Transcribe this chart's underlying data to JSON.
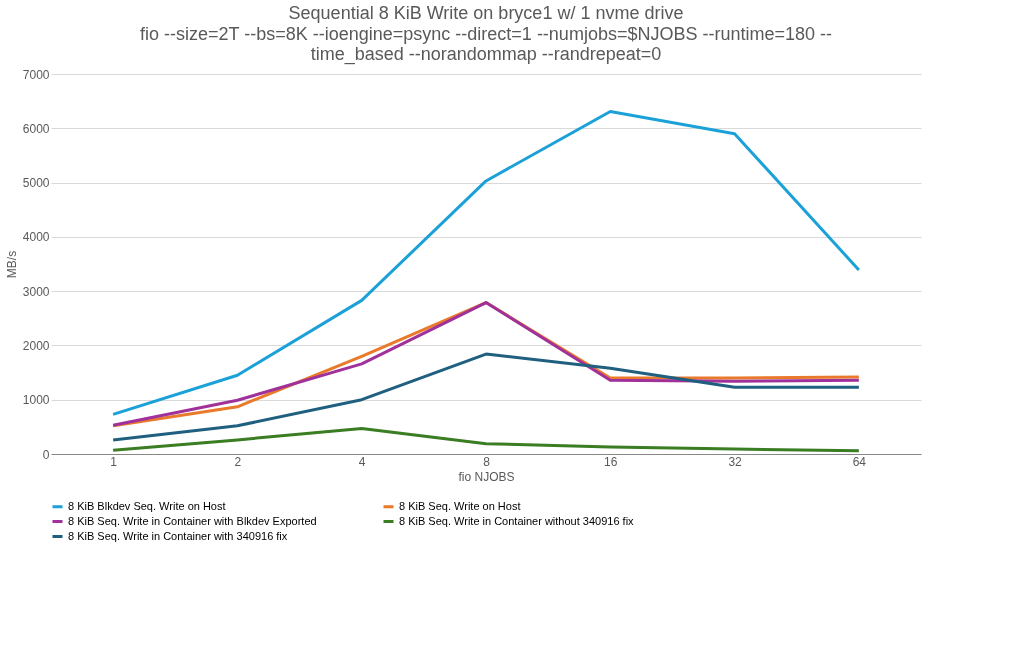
{
  "chart_data": {
    "type": "line",
    "title": "Sequential 8 KiB Write on bryce1 w/ 1 nvme drive",
    "subtitle": [
      "fio --size=2T --bs=8K --ioengine=psync --direct=1 --numjobs=$NJOBS --runtime=180 --",
      "time_based --norandommap --randrepeat=0"
    ],
    "xlabel": "fio NJOBS",
    "ylabel": "MB/s",
    "categories": [
      "1",
      "2",
      "4",
      "8",
      "16",
      "32",
      "64"
    ],
    "series": [
      {
        "name": "8 KiB Blkdev Seq. Write on Host",
        "color": "#1ba1d8",
        "values": [
          730,
          1450,
          2830,
          5030,
          6310,
          5900,
          3390
        ]
      },
      {
        "name": "8 KiB Seq. Write on Host",
        "color": "#e97a2b",
        "values": [
          520,
          870,
          1800,
          2790,
          1400,
          1400,
          1420
        ]
      },
      {
        "name": "8 KiB Seq. Write in Container with Blkdev Exported",
        "color": "#a0309a",
        "values": [
          530,
          990,
          1660,
          2790,
          1360,
          1340,
          1360
        ]
      },
      {
        "name": "8 KiB Seq. Write in Container without 340916 fix",
        "color": "#3a7d22",
        "values": [
          70,
          260,
          470,
          190,
          130,
          90,
          60
        ]
      },
      {
        "name": "8 KiB Seq. Write in Container with 340916 fix",
        "color": "#1f5f7f",
        "values": [
          260,
          520,
          1000,
          1840,
          1580,
          1230,
          1230
        ]
      }
    ],
    "ylim": [
      0,
      7000
    ],
    "yticks": [
      0,
      1000,
      2000,
      3000,
      4000,
      5000,
      6000,
      7000
    ],
    "grid": "y",
    "legend": "bottom",
    "marker": "none",
    "line_style": "solid"
  }
}
